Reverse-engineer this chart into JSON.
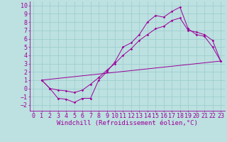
{
  "bg_color": "#bde0e0",
  "line_color": "#990099",
  "grid_color": "#99cccc",
  "xlabel": "Windchill (Refroidissement éolien,°C)",
  "xlabel_fontsize": 6.5,
  "tick_fontsize": 6.0,
  "xlim": [
    -0.5,
    23.5
  ],
  "ylim": [
    -2.7,
    10.5
  ],
  "yticks": [
    -2,
    -1,
    0,
    1,
    2,
    3,
    4,
    5,
    6,
    7,
    8,
    9,
    10
  ],
  "xticks": [
    0,
    1,
    2,
    3,
    4,
    5,
    6,
    7,
    8,
    9,
    10,
    11,
    12,
    13,
    14,
    15,
    16,
    17,
    18,
    19,
    20,
    21,
    22,
    23
  ],
  "series1_x": [
    1,
    2,
    3,
    4,
    5,
    6,
    7,
    8,
    9,
    10,
    11,
    12,
    13,
    14,
    15,
    16,
    17,
    18,
    19,
    20,
    21,
    22,
    23
  ],
  "series1_y": [
    1.0,
    0.0,
    -1.2,
    -1.3,
    -1.7,
    -1.2,
    -1.2,
    1.0,
    2.0,
    3.2,
    5.0,
    5.5,
    6.5,
    8.0,
    8.8,
    8.6,
    9.3,
    9.8,
    7.2,
    6.5,
    6.3,
    5.0,
    3.3
  ],
  "series2_x": [
    1,
    2,
    3,
    4,
    5,
    6,
    7,
    8,
    9,
    10,
    11,
    12,
    13,
    14,
    15,
    16,
    17,
    18,
    19,
    20,
    21,
    22,
    23
  ],
  "series2_y": [
    1.0,
    0.0,
    -0.2,
    -0.3,
    -0.5,
    -0.2,
    0.5,
    1.3,
    2.2,
    3.0,
    4.0,
    4.8,
    5.8,
    6.5,
    7.2,
    7.5,
    8.2,
    8.5,
    7.0,
    6.8,
    6.5,
    5.8,
    3.3
  ],
  "series3_x": [
    1,
    23
  ],
  "series3_y": [
    1.0,
    3.3
  ]
}
